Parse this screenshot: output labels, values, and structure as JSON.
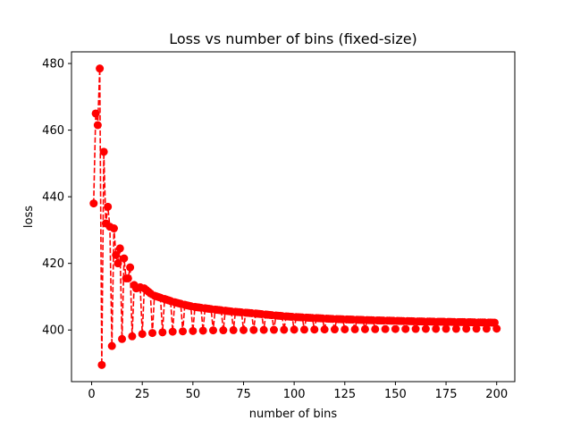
{
  "chart_data": {
    "type": "line",
    "title": "Loss vs number of bins (fixed-size)",
    "xlabel": "number of bins",
    "ylabel": "loss",
    "xlim": [
      -9.95,
      208.95
    ],
    "ylim": [
      384.5,
      483.5
    ],
    "xticks": [
      0,
      25,
      50,
      75,
      100,
      125,
      150,
      175,
      200
    ],
    "yticks": [
      400,
      420,
      440,
      460,
      480
    ],
    "grid": false,
    "legend": "none",
    "series": [
      {
        "color": "#ff0000",
        "line_style": "dashed",
        "marker": "circle",
        "x_start": 1,
        "x_step": 1,
        "upper_samples": [
          [
            1,
            438
          ],
          [
            2,
            465
          ],
          [
            3,
            461.5
          ],
          [
            4,
            478.5
          ],
          [
            6,
            453.5
          ],
          [
            7,
            432
          ],
          [
            8,
            437
          ],
          [
            9,
            431
          ],
          [
            10,
            437
          ],
          [
            11,
            430.5
          ],
          [
            12,
            422.5
          ],
          [
            13,
            420
          ],
          [
            14,
            424.5
          ],
          [
            15,
            419.5
          ],
          [
            16,
            421.5
          ],
          [
            17,
            415.5
          ],
          [
            18,
            415.5
          ],
          [
            19,
            418.8
          ],
          [
            20,
            414.5
          ],
          [
            22,
            412.5
          ],
          [
            25,
            413
          ],
          [
            30,
            410.5
          ],
          [
            35,
            409.5
          ],
          [
            40,
            408.5
          ],
          [
            45,
            407.7
          ],
          [
            50,
            407
          ],
          [
            60,
            406.2
          ],
          [
            70,
            405.5
          ],
          [
            80,
            405
          ],
          [
            90,
            404.4
          ],
          [
            100,
            403.9
          ],
          [
            120,
            403.3
          ],
          [
            140,
            402.9
          ],
          [
            160,
            402.6
          ],
          [
            180,
            402.4
          ],
          [
            200,
            402.2
          ]
        ],
        "lower_samples": [
          [
            5,
            389.5
          ],
          [
            10,
            395.2
          ],
          [
            15,
            397.3
          ],
          [
            20,
            398.1
          ],
          [
            25,
            398.8
          ],
          [
            30,
            399.1
          ],
          [
            35,
            399.3
          ],
          [
            40,
            399.5
          ],
          [
            50,
            399.7
          ],
          [
            60,
            399.9
          ],
          [
            80,
            400
          ],
          [
            100,
            400.1
          ],
          [
            150,
            400.3
          ],
          [
            200,
            400.4
          ]
        ],
        "upper_mod": 5
      }
    ]
  }
}
